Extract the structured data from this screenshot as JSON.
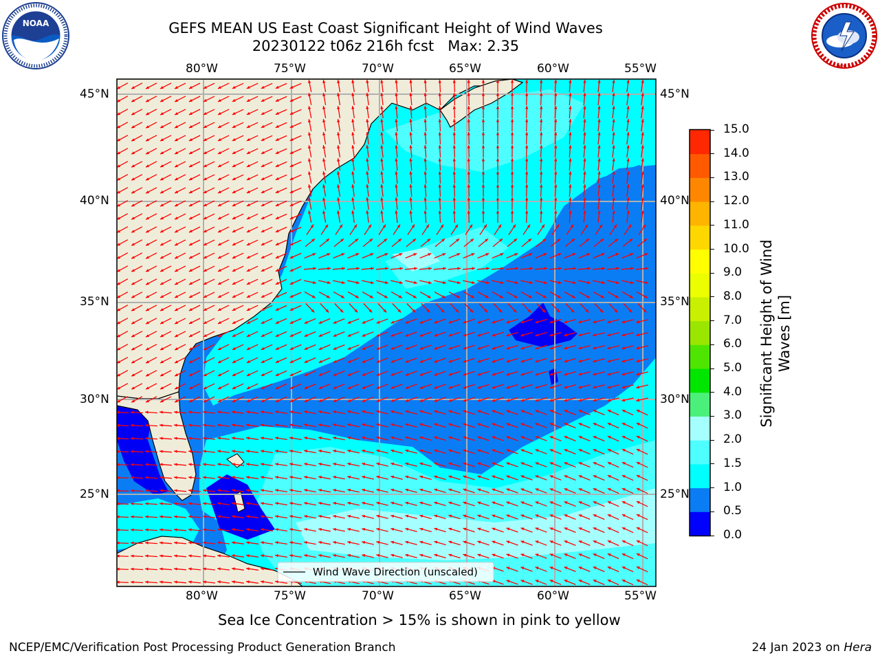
{
  "header": {
    "title_line1": "GEFS MEAN US East Coast Significant Height of Wind Waves",
    "title_line2": "20230122 t06z 216h fcst   Max: 2.35"
  },
  "logos": {
    "left": {
      "text": "NOAA",
      "ring_text": "NATIONAL OCEANIC AND ATMOSPHERIC ADMINISTRATION · U.S. DEPARTMENT OF COMMERCE"
    },
    "right": {
      "ring_text": "NATIONAL WEATHER SERVICE"
    }
  },
  "map": {
    "lon_labels": [
      "80°W",
      "75°W",
      "70°W",
      "65°W",
      "60°W",
      "55°W"
    ],
    "lat_labels": [
      "45°N",
      "40°N",
      "35°N",
      "30°N",
      "25°N"
    ],
    "legend": "Wind Wave Direction (unscaled)",
    "colors": {
      "land": "#efedda",
      "very_low": "#0000f5",
      "low": "#0a7df5",
      "mid": "#00ffff",
      "high": "#4dffff",
      "higher": "#a6ffff",
      "arrow": "#ff0000",
      "grid": "#b0b0b0"
    }
  },
  "colorbar": {
    "label": "Significant Height of Wind Waves [m]",
    "ticks": [
      "0.0",
      "0.5",
      "1.0",
      "1.5",
      "2.0",
      "3.0",
      "4.0",
      "5.0",
      "6.0",
      "7.0",
      "8.0",
      "9.0",
      "10.0",
      "11.0",
      "12.0",
      "13.0",
      "14.0",
      "15.0"
    ],
    "colors": [
      "#0000ff",
      "#0a7df5",
      "#00ffff",
      "#4dffff",
      "#a6ffff",
      "#4bf07b",
      "#00e600",
      "#4ee600",
      "#9ae600",
      "#c8f000",
      "#ebff00",
      "#ffff00",
      "#ffd700",
      "#ffb400",
      "#ff8700",
      "#ff5a00",
      "#ff2800"
    ]
  },
  "caption": "Sea Ice Concentration > 15% is shown in pink to yellow",
  "footer": {
    "left": "NCEP/EMC/Verification Post Processing Product Generation Branch",
    "right_date": "24 Jan 2023 on ",
    "right_host": "Hera"
  }
}
